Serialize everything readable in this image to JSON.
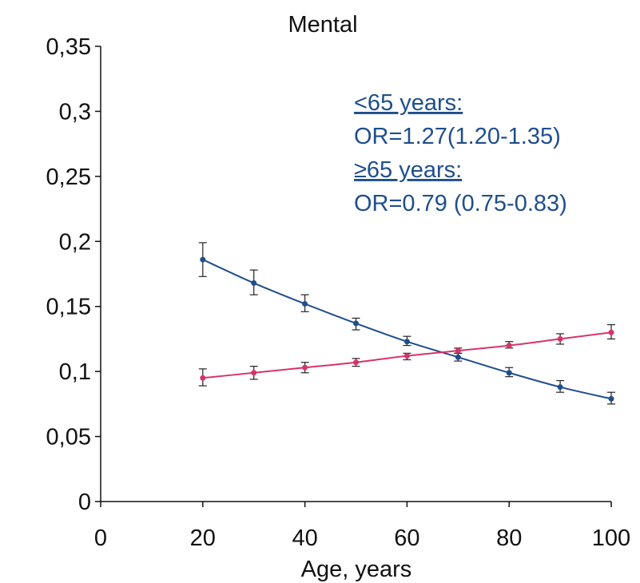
{
  "chart_data": {
    "type": "line",
    "title": "Mental",
    "xlabel": "Age, years",
    "ylabel": "",
    "xlim": [
      0,
      100
    ],
    "ylim": [
      0,
      0.35
    ],
    "x_ticks": [
      0,
      20,
      40,
      60,
      80,
      100
    ],
    "x_tick_labels": [
      "0",
      "20",
      "40",
      "60",
      "80",
      "100"
    ],
    "y_ticks": [
      0,
      0.05,
      0.1,
      0.15,
      0.2,
      0.25,
      0.3,
      0.35
    ],
    "y_tick_labels": [
      "0",
      "0,05",
      "0,1",
      "0,15",
      "0,2",
      "0,25",
      "0,3",
      "0,35"
    ],
    "grid": false,
    "legend": "none",
    "x": [
      20,
      30,
      40,
      50,
      60,
      70,
      80,
      90,
      100
    ],
    "series": [
      {
        "color": "#1f4e8c",
        "values": [
          0.186,
          0.168,
          0.152,
          0.137,
          0.123,
          0.111,
          0.099,
          0.088,
          0.079
        ],
        "err_low": [
          0.173,
          0.159,
          0.146,
          0.132,
          0.12,
          0.108,
          0.096,
          0.084,
          0.075
        ],
        "err_high": [
          0.199,
          0.178,
          0.159,
          0.141,
          0.127,
          0.114,
          0.103,
          0.093,
          0.084
        ]
      },
      {
        "color": "#d6336c",
        "values": [
          0.095,
          0.099,
          0.103,
          0.107,
          0.112,
          0.116,
          0.12,
          0.125,
          0.13
        ],
        "err_low": [
          0.089,
          0.094,
          0.099,
          0.104,
          0.109,
          0.114,
          0.118,
          0.121,
          0.125
        ],
        "err_high": [
          0.102,
          0.104,
          0.107,
          0.11,
          0.114,
          0.118,
          0.123,
          0.129,
          0.136
        ]
      }
    ],
    "annotations": [
      {
        "text": "<65 years:",
        "underline": true
      },
      {
        "text": "OR=1.27(1.20-1.35)",
        "underline": false
      },
      {
        "text": "≥65 years:",
        "underline": true
      },
      {
        "text": "OR=0.79 (0.75-0.83)",
        "underline": false
      }
    ],
    "annotation_color": "#1f4e8c"
  }
}
